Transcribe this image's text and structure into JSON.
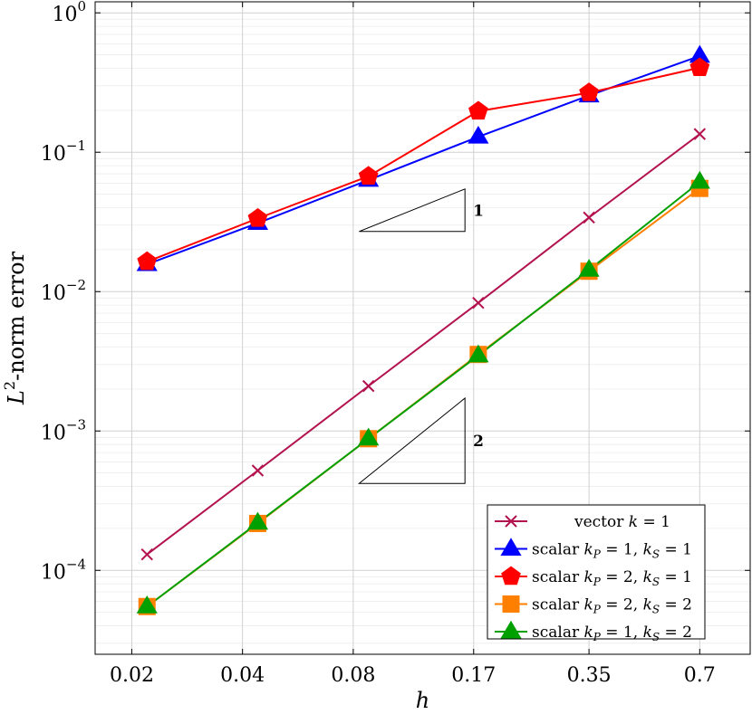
{
  "chart_data": {
    "type": "line",
    "x": [
      0.022,
      0.044,
      0.088,
      0.175,
      0.35,
      0.7
    ],
    "x_ticks": [
      0.02,
      0.04,
      0.08,
      0.17,
      0.35,
      0.7
    ],
    "x_tick_labels": [
      "0.02",
      "0.04",
      "0.08",
      "0.17",
      "0.35",
      "0.7"
    ],
    "y_tick_exponents": [
      "0",
      "−1",
      "−2",
      "−3",
      "−4"
    ],
    "y_tick_values": [
      1,
      0.1,
      0.01,
      0.001,
      0.0001
    ],
    "ylim": [
      2.5e-05,
      1.2
    ],
    "xlim": [
      0.0159,
      0.96
    ],
    "xscale": "log",
    "yscale": "log",
    "grid": true,
    "xlabel": "h",
    "ylabel_base": "L",
    "ylabel_sup": "2",
    "ylabel_rest": "-norm error",
    "legend_position": "bottom-right",
    "series": [
      {
        "name": "vector k = 1",
        "color": "#b3124e",
        "marker": "x",
        "values": [
          0.00013,
          0.00052,
          0.0021,
          0.0083,
          0.034,
          0.135
        ]
      },
      {
        "name": "scalar kP = 1, kS = 1",
        "color": "#0000ff",
        "marker": "triangle",
        "values": [
          0.0157,
          0.031,
          0.0632,
          0.129,
          0.255,
          0.49
        ]
      },
      {
        "name": "scalar kP = 2, kS = 1",
        "color": "#ff0000",
        "marker": "pentagon",
        "values": [
          0.0164,
          0.0335,
          0.0672,
          0.197,
          0.267,
          0.404
        ]
      },
      {
        "name": "scalar kP = 2, kS = 2",
        "color": "#ff8000",
        "marker": "square",
        "values": [
          5.5e-05,
          0.000217,
          0.00088,
          0.00354,
          0.014,
          0.055
        ]
      },
      {
        "name": "scalar kP = 1, kS = 2",
        "color": "#00a000",
        "marker": "triangle",
        "values": [
          5.5e-05,
          0.000219,
          0.00088,
          0.00348,
          0.0143,
          0.0612
        ]
      }
    ],
    "slope_triangles": [
      {
        "label": "1",
        "x0": 0.083,
        "x1": 0.161,
        "y_low": 0.027,
        "y_high": 0.0545
      },
      {
        "label": "2",
        "x0": 0.083,
        "x1": 0.161,
        "y_low": 0.00042,
        "y_high": 0.00172
      }
    ],
    "legend_entries": [
      {
        "prefix": "vector ",
        "var": "k",
        "sub": "",
        "mid": " = 1",
        "var2": "",
        "sub2": "",
        "suffix": ""
      },
      {
        "prefix": "scalar ",
        "var": "k",
        "sub": "P",
        "mid": " = 1, ",
        "var2": "k",
        "sub2": "S",
        "suffix": " = 1"
      },
      {
        "prefix": "scalar ",
        "var": "k",
        "sub": "P",
        "mid": " = 2, ",
        "var2": "k",
        "sub2": "S",
        "suffix": " = 1"
      },
      {
        "prefix": "scalar ",
        "var": "k",
        "sub": "P",
        "mid": " = 2, ",
        "var2": "k",
        "sub2": "S",
        "suffix": " = 2"
      },
      {
        "prefix": "scalar ",
        "var": "k",
        "sub": "P",
        "mid": " = 1, ",
        "var2": "k",
        "sub2": "S",
        "suffix": " = 2"
      }
    ]
  }
}
